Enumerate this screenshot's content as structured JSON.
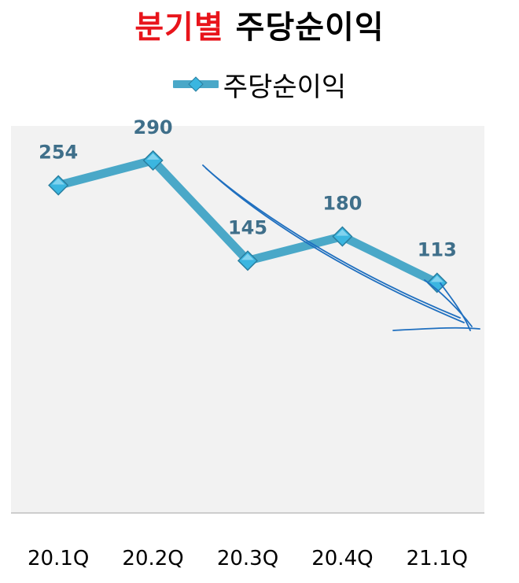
{
  "title": {
    "highlight": "분기별",
    "rest": "주당순이익"
  },
  "chart_data": {
    "type": "line",
    "title": "분기별 주당순이익",
    "categories": [
      "20.1Q",
      "20.2Q",
      "20.3Q",
      "20.4Q",
      "21.1Q"
    ],
    "series": [
      {
        "name": "주당순이익",
        "values": [
          254,
          290,
          145,
          180,
          113
        ]
      }
    ],
    "ylim": [
      -220,
      340
    ],
    "legend": "top-center",
    "grid": false,
    "data_labels": true,
    "colors": {
      "line": "#4aa8c8",
      "marker": "#3bb6e0",
      "plot_bg": "#f2f2f2",
      "label": "#3f6f8a",
      "annotation": "#1f6fbf"
    },
    "annotation": "hand-drawn downward arrow"
  }
}
